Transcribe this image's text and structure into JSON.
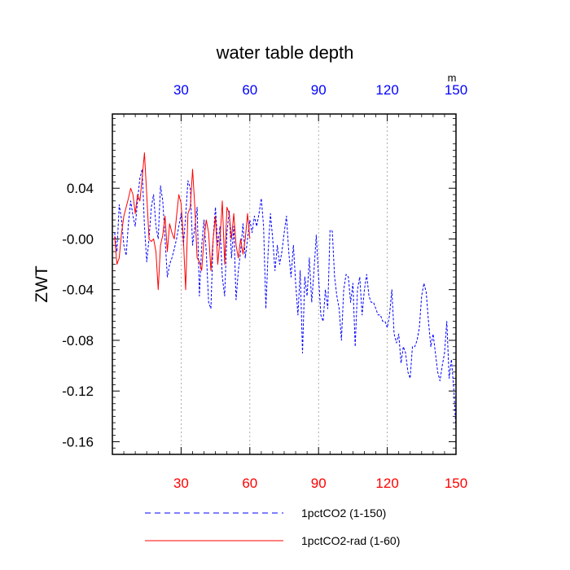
{
  "chart_data": {
    "type": "line",
    "title": "water table depth",
    "ylabel": "ZWT",
    "xlabel": "",
    "units_label": "m",
    "xlim": [
      0,
      150
    ],
    "ylim": [
      -0.17,
      0.0986
    ],
    "x_ticks": [
      30,
      60,
      90,
      120,
      150
    ],
    "y_ticks": [
      0.04,
      0.0,
      -0.04,
      -0.08,
      -0.12,
      -0.16
    ],
    "y_tick_labels": [
      "0.04",
      "-0.00",
      "-0.04",
      "-0.08",
      "-0.12",
      "-0.16"
    ],
    "x_grid": true,
    "top_axis_color": "#0000ff",
    "bottom_axis_color": "#ff0000",
    "legend_position": "bottom",
    "series": [
      {
        "name": "1pctCO2 (1-150)",
        "color": "#0000ff",
        "dash": "dashed",
        "x": [
          1,
          2,
          3,
          4,
          5,
          6,
          7,
          8,
          9,
          10,
          11,
          12,
          13,
          14,
          15,
          16,
          17,
          18,
          19,
          20,
          21,
          22,
          23,
          24,
          25,
          26,
          27,
          28,
          29,
          30,
          31,
          32,
          33,
          34,
          35,
          36,
          37,
          38,
          39,
          40,
          41,
          42,
          43,
          44,
          45,
          46,
          47,
          48,
          49,
          50,
          51,
          52,
          53,
          54,
          55,
          56,
          57,
          58,
          59,
          60,
          61,
          62,
          63,
          64,
          65,
          66,
          67,
          68,
          69,
          70,
          71,
          72,
          73,
          74,
          75,
          76,
          77,
          78,
          79,
          80,
          81,
          82,
          83,
          84,
          85,
          86,
          87,
          88,
          89,
          90,
          91,
          92,
          93,
          94,
          95,
          96,
          97,
          98,
          99,
          100,
          101,
          102,
          103,
          104,
          105,
          106,
          107,
          108,
          109,
          110,
          111,
          112,
          113,
          114,
          115,
          116,
          117,
          118,
          119,
          120,
          121,
          122,
          123,
          124,
          125,
          126,
          127,
          128,
          129,
          130,
          131,
          132,
          133,
          134,
          135,
          136,
          137,
          138,
          139,
          140,
          141,
          142,
          143,
          144,
          145,
          146,
          147,
          148,
          149,
          150
        ],
        "y": [
          0.005,
          -0.01,
          0.027,
          0.015,
          -0.005,
          -0.013,
          0.012,
          0.03,
          0.018,
          0.01,
          0.03,
          0.048,
          0.055,
          0.01,
          -0.018,
          0.0,
          0.025,
          0.035,
          0.01,
          0.0,
          0.042,
          0.03,
          0.0,
          -0.03,
          -0.02,
          -0.015,
          -0.008,
          0.0,
          0.01,
          0.02,
          -0.005,
          0.018,
          0.046,
          0.04,
          -0.005,
          0.01,
          0.025,
          -0.045,
          -0.005,
          0.015,
          -0.01,
          -0.05,
          -0.055,
          0.0,
          0.025,
          -0.005,
          0.01,
          -0.03,
          -0.045,
          0.005,
          0.022,
          -0.015,
          0.01,
          -0.048,
          -0.025,
          -0.01,
          0.012,
          -0.015,
          0.0,
          0.015,
          0.005,
          0.018,
          0.01,
          0.02,
          0.032,
          0.01,
          -0.055,
          -0.01,
          0.02,
          0.0,
          -0.025,
          -0.005,
          -0.02,
          -0.01,
          0.005,
          0.018,
          -0.01,
          -0.03,
          -0.005,
          -0.035,
          -0.06,
          -0.025,
          -0.09,
          -0.03,
          -0.045,
          -0.015,
          -0.05,
          -0.025,
          0.003,
          -0.03,
          -0.06,
          -0.065,
          -0.04,
          -0.055,
          0.007,
          0.006,
          -0.03,
          -0.045,
          -0.055,
          -0.08,
          -0.04,
          -0.028,
          -0.03,
          -0.05,
          -0.035,
          -0.085,
          -0.04,
          -0.03,
          -0.06,
          -0.04,
          -0.028,
          -0.045,
          -0.05,
          -0.05,
          -0.055,
          -0.06,
          -0.06,
          -0.065,
          -0.065,
          -0.07,
          -0.06,
          -0.04,
          -0.075,
          -0.082,
          -0.075,
          -0.098,
          -0.085,
          -0.09,
          -0.105,
          -0.11,
          -0.085,
          -0.085,
          -0.08,
          -0.07,
          -0.045,
          -0.035,
          -0.042,
          -0.065,
          -0.085,
          -0.075,
          -0.09,
          -0.105,
          -0.112,
          -0.1,
          -0.09,
          -0.065,
          -0.11,
          -0.095,
          -0.118,
          -0.15
        ]
      },
      {
        "name": "1pctCO2-rad (1-60)",
        "color": "#ff0000",
        "dash": "solid",
        "x": [
          1,
          2,
          3,
          4,
          5,
          6,
          7,
          8,
          9,
          10,
          11,
          12,
          13,
          14,
          15,
          16,
          17,
          18,
          19,
          20,
          21,
          22,
          23,
          24,
          25,
          26,
          27,
          28,
          29,
          30,
          31,
          32,
          33,
          34,
          35,
          36,
          37,
          38,
          39,
          40,
          41,
          42,
          43,
          44,
          45,
          46,
          47,
          48,
          49,
          50,
          51,
          52,
          53,
          54,
          55,
          56,
          57,
          58,
          59,
          60
        ],
        "y": [
          0.002,
          -0.02,
          -0.015,
          0.005,
          0.018,
          0.025,
          0.032,
          0.04,
          0.035,
          0.02,
          0.035,
          0.03,
          0.048,
          0.068,
          0.035,
          0.0,
          -0.002,
          0.0,
          -0.01,
          -0.04,
          -0.005,
          0.003,
          0.018,
          -0.01,
          0.012,
          0.005,
          0.0,
          0.018,
          0.035,
          0.028,
          0.0,
          -0.04,
          0.02,
          0.025,
          0.055,
          0.025,
          -0.015,
          -0.018,
          -0.025,
          0.0,
          0.015,
          0.005,
          -0.025,
          0.0,
          0.018,
          -0.02,
          0.0,
          0.03,
          -0.02,
          0.025,
          0.02,
          0.0,
          0.02,
          -0.005,
          -0.015,
          0.0,
          -0.012,
          0.0,
          0.02,
          0.0
        ]
      }
    ]
  }
}
